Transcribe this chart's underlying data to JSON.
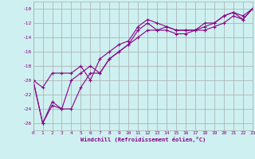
{
  "xlabel": "Windchill (Refroidissement éolien,°C)",
  "bg_color": "#cef0f0",
  "grid_color": "#aaaaaa",
  "line_color": "#880088",
  "marker": "+",
  "xmin": 0,
  "xmax": 23,
  "ymin": -27,
  "ymax": -9,
  "yticks": [
    -10,
    -12,
    -14,
    -16,
    -18,
    -20,
    -22,
    -24,
    -26
  ],
  "xticks": [
    0,
    1,
    2,
    3,
    4,
    5,
    6,
    7,
    8,
    9,
    10,
    11,
    12,
    13,
    14,
    15,
    16,
    17,
    18,
    19,
    20,
    21,
    22,
    23
  ],
  "line1_x": [
    0,
    1,
    2,
    3,
    4,
    5,
    6,
    7,
    8,
    9,
    10,
    11,
    12,
    13,
    14,
    15,
    16,
    17,
    18,
    19,
    20,
    21,
    22,
    23
  ],
  "line1_y": [
    -20,
    -21,
    -19,
    -19,
    -19,
    -18,
    -20,
    -17,
    -16,
    -15,
    -14.5,
    -12.5,
    -11.5,
    -12,
    -12.5,
    -13,
    -13,
    -13,
    -12.5,
    -12,
    -11,
    -10.5,
    -11,
    -10
  ],
  "line2_x": [
    0,
    1,
    2,
    3,
    4,
    5,
    6,
    7,
    8,
    9,
    10,
    11,
    12,
    13,
    14,
    15,
    16,
    17,
    18,
    19,
    20,
    21,
    22,
    23
  ],
  "line2_y": [
    -20,
    -26,
    -23,
    -24,
    -24,
    -21,
    -19,
    -19,
    -17,
    -16,
    -15,
    -14,
    -13,
    -13,
    -13,
    -13.5,
    -13.5,
    -13,
    -13,
    -12.5,
    -12,
    -11,
    -11.5,
    -10
  ],
  "line3_x": [
    0,
    1,
    2,
    3,
    4,
    5,
    6,
    7,
    8,
    9,
    10,
    11,
    12,
    13,
    14,
    15,
    16,
    17,
    18,
    19,
    20,
    21,
    22,
    23
  ],
  "line3_y": [
    -20,
    -26,
    -23.5,
    -24,
    -20,
    -19,
    -18,
    -19,
    -17,
    -16,
    -15,
    -13,
    -12,
    -13,
    -12.5,
    -13,
    -13,
    -13,
    -12,
    -12,
    -11,
    -10.5,
    -11.5,
    -10
  ],
  "figwidth": 3.2,
  "figheight": 2.0,
  "dpi": 100
}
